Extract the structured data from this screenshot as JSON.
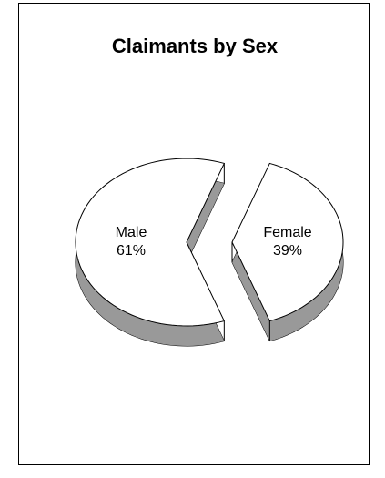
{
  "chart_data": {
    "type": "pie",
    "title": "Claimants by Sex",
    "categories": [
      "Male",
      "Female"
    ],
    "values": [
      61,
      39
    ],
    "value_labels": [
      "61%",
      "39%"
    ],
    "color": "#ffffff",
    "side_color": "#999999"
  }
}
